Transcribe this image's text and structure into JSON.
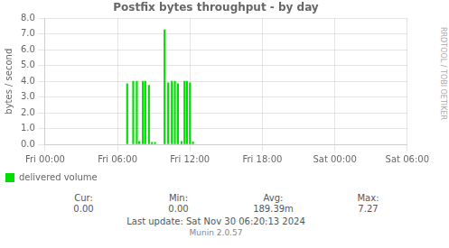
{
  "chart_data": {
    "type": "bar",
    "title": "Postfix bytes throughput - by day",
    "ylabel": "bytes / second",
    "x": [
      6.8,
      7.3,
      7.6,
      7.8,
      8.1,
      8.3,
      8.6,
      8.85,
      9.1,
      9.9,
      10.2,
      10.5,
      10.75,
      11.0,
      11.3,
      11.55,
      11.75,
      12.0,
      12.25
    ],
    "series": [
      {
        "name": "delivered volume",
        "color": "#00dd00",
        "values": [
          3.85,
          4.0,
          4.0,
          0.18,
          4.0,
          4.0,
          3.75,
          0.12,
          0.12,
          7.27,
          3.9,
          4.0,
          4.0,
          3.85,
          0.18,
          4.0,
          4.0,
          3.9,
          0.15
        ]
      }
    ],
    "xlim": [
      0,
      30
    ],
    "xticks": [
      {
        "value": 0,
        "label": "Fri 00:00"
      },
      {
        "value": 6,
        "label": "Fri 06:00"
      },
      {
        "value": 12,
        "label": "Fri 12:00"
      },
      {
        "value": 18,
        "label": "Fri 18:00"
      },
      {
        "value": 24,
        "label": "Sat 00:00"
      },
      {
        "value": 30,
        "label": "Sat 06:00"
      }
    ],
    "ylim": [
      0.0,
      8.0
    ],
    "yticks": [
      {
        "value": 0,
        "label": "0.0"
      },
      {
        "value": 1,
        "label": "1.0"
      },
      {
        "value": 2,
        "label": "2.0"
      },
      {
        "value": 3,
        "label": "3.0"
      },
      {
        "value": 4,
        "label": "4.0"
      },
      {
        "value": 5,
        "label": "5.0"
      },
      {
        "value": 6,
        "label": "6.0"
      },
      {
        "value": 7,
        "label": "7.0"
      },
      {
        "value": 8,
        "label": "8.0"
      }
    ],
    "grid": true,
    "legend": "bottom",
    "annotations": [
      "Cur:",
      "0.00",
      "Min:",
      "0.00",
      "Avg:",
      "189.39m",
      "Max:",
      "7.27",
      "Last update:  Sat Nov 30 06:20:13 2024",
      "Munin 2.0.57",
      "RRDTOOL / TOBI OETIKER"
    ]
  }
}
